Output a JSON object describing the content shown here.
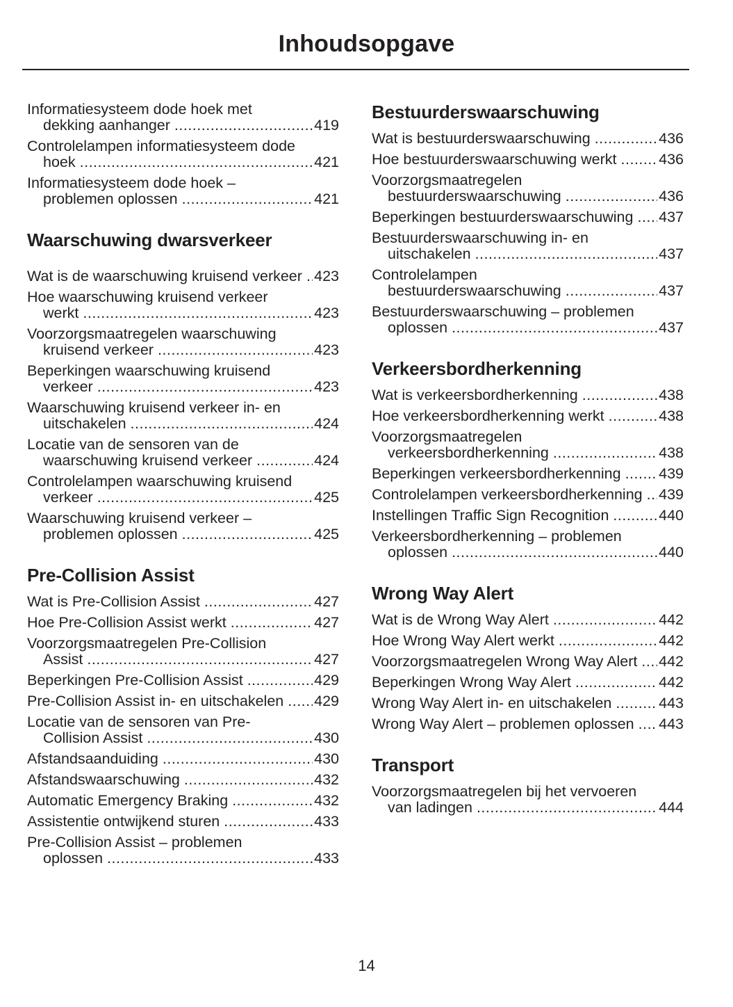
{
  "title": "Inhoudsopgave",
  "page_number": "14",
  "left": {
    "intro": [
      {
        "t": "Informatiesysteem dode hoek met dekking aanhanger",
        "p": "419"
      },
      {
        "t": "Controlelampen informatiesysteem dode hoek",
        "p": "421"
      },
      {
        "t": "Informatiesysteem dode hoek – problemen oplossen",
        "p": "421"
      }
    ],
    "s1": {
      "heading": "Waarschuwing dwarsverkeer",
      "items": [
        {
          "t": "Wat is de waarschuwing kruisend verkeer",
          "p": "423"
        },
        {
          "t": "Hoe waarschuwing kruisend verkeer werkt",
          "p": "423"
        },
        {
          "t": "Voorzorgsmaatregelen waarschuwing kruisend verkeer",
          "p": "423"
        },
        {
          "t": "Beperkingen waarschuwing kruisend verkeer",
          "p": "423"
        },
        {
          "t": "Waarschuwing kruisend verkeer in- en uitschakelen",
          "p": "424"
        },
        {
          "t": "Locatie van de sensoren van de waarschuwing kruisend verkeer",
          "p": "424"
        },
        {
          "t": "Controlelampen waarschuwing kruisend verkeer",
          "p": "425"
        },
        {
          "t": "Waarschuwing kruisend verkeer – problemen oplossen",
          "p": "425"
        }
      ]
    },
    "s2": {
      "heading": "Pre-Collision Assist",
      "items": [
        {
          "t": "Wat is Pre-Collision Assist",
          "p": "427"
        },
        {
          "t": "Hoe Pre-Collision Assist werkt",
          "p": "427"
        },
        {
          "t": "Voorzorgsmaatregelen Pre-Collision Assist",
          "p": "427"
        },
        {
          "t": "Beperkingen Pre-Collision Assist",
          "p": "429"
        },
        {
          "t": "Pre-Collision Assist in- en uitschakelen",
          "p": "429"
        },
        {
          "t": "Locatie van de sensoren van Pre-Collision Assist",
          "p": "430"
        },
        {
          "t": "Afstandsaanduiding",
          "p": "430"
        },
        {
          "t": "Afstandswaarschuwing",
          "p": "432"
        },
        {
          "t": "Automatic Emergency Braking",
          "p": "432"
        },
        {
          "t": "Assistentie ontwijkend sturen",
          "p": "433"
        },
        {
          "t": "Pre-Collision Assist – problemen oplossen",
          "p": "433"
        }
      ]
    }
  },
  "right": {
    "s1": {
      "heading": "Bestuurderswaarschuwing",
      "items": [
        {
          "t": "Wat is bestuurderswaarschuwing",
          "p": "436"
        },
        {
          "t": "Hoe bestuurderswaarschuwing werkt",
          "p": "436"
        },
        {
          "t": "Voorzorgsmaatregelen bestuurderswaarschuwing",
          "p": "436"
        },
        {
          "t": "Beperkingen bestuurderswaarschuwing",
          "p": "437"
        },
        {
          "t": "Bestuurderswaarschuwing in- en uitschakelen",
          "p": "437"
        },
        {
          "t": "Controlelampen bestuurderswaarschuwing",
          "p": "437"
        },
        {
          "t": "Bestuurderswaarschuwing – problemen oplossen",
          "p": "437"
        }
      ]
    },
    "s2": {
      "heading": "Verkeersbordherkenning",
      "items": [
        {
          "t": "Wat is verkeersbordherkenning",
          "p": "438"
        },
        {
          "t": "Hoe verkeersbordherkenning werkt",
          "p": "438"
        },
        {
          "t": "Voorzorgsmaatregelen verkeersbordherkenning",
          "p": "438"
        },
        {
          "t": "Beperkingen verkeersbordherkenning",
          "p": "439"
        },
        {
          "t": "Controlelampen verkeersbordherkenning",
          "p": "439"
        },
        {
          "t": "Instellingen Traffic Sign Recognition",
          "p": "440"
        },
        {
          "t": "Verkeersbordherkenning – problemen oplossen",
          "p": "440"
        }
      ]
    },
    "s3": {
      "heading": "Wrong Way Alert",
      "items": [
        {
          "t": "Wat is de Wrong Way Alert",
          "p": "442"
        },
        {
          "t": "Hoe Wrong Way Alert werkt",
          "p": "442"
        },
        {
          "t": "Voorzorgsmaatregelen Wrong Way Alert",
          "p": "442"
        },
        {
          "t": "Beperkingen Wrong Way Alert",
          "p": "442"
        },
        {
          "t": "Wrong Way Alert in- en uitschakelen",
          "p": "443"
        },
        {
          "t": "Wrong Way Alert – problemen oplossen",
          "p": "443"
        }
      ]
    },
    "s4": {
      "heading": "Transport",
      "items": [
        {
          "t": "Voorzorgsmaatregelen bij het vervoeren van ladingen",
          "p": "444"
        }
      ]
    }
  }
}
